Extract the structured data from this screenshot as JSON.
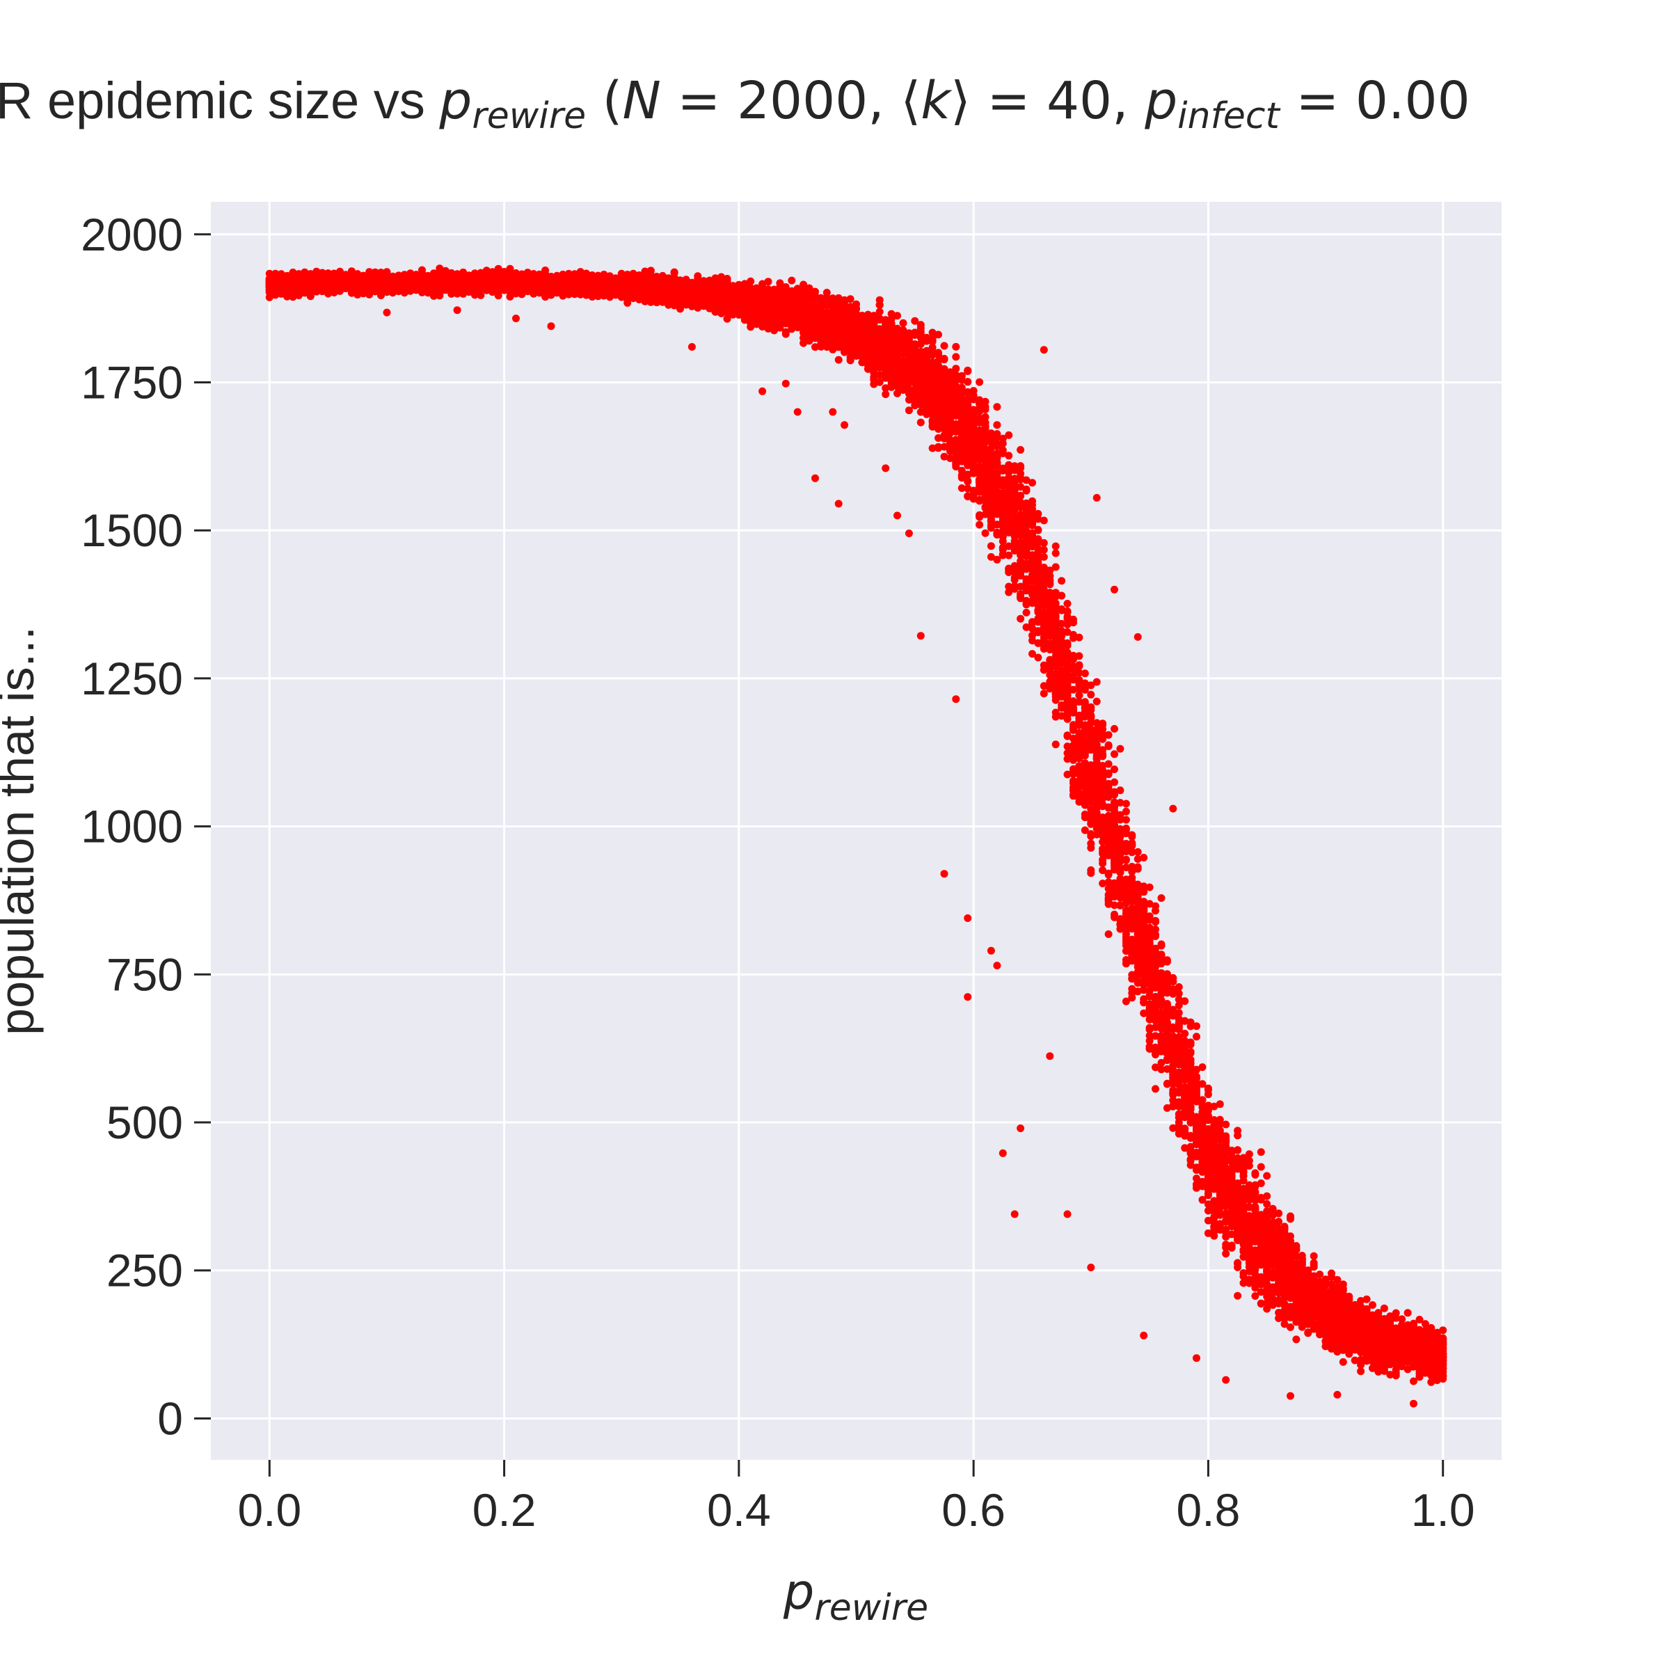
{
  "chart_data": {
    "type": "scatter",
    "title": {
      "prefix": "R epidemic size vs ",
      "p": "p",
      "sub_rewire": "rewire",
      "paren_open": " (",
      "N": "N",
      "eq1": " = 2000, ",
      "langle": "⟨",
      "k": "k",
      "rangle": "⟩",
      "eq2": " = 40, ",
      "p2": "p",
      "sub_infect": "infect",
      "eq3": " = 0.00"
    },
    "xlabel": {
      "p": "p",
      "sub": "rewire"
    },
    "ylabel": "population that is...",
    "xlim": [
      -0.05,
      1.05
    ],
    "ylim": [
      -70,
      2055
    ],
    "xticks": [
      "0.0",
      "0.2",
      "0.4",
      "0.6",
      "0.8",
      "1.0"
    ],
    "xtick_values": [
      0,
      0.2,
      0.4,
      0.6,
      0.8,
      1.0
    ],
    "yticks": [
      "0",
      "250",
      "500",
      "750",
      "1000",
      "1250",
      "1500",
      "1750",
      "2000"
    ],
    "ytick_values": [
      0,
      250,
      500,
      750,
      1000,
      1250,
      1500,
      1750,
      2000
    ],
    "grid": true,
    "marker_color": "#ff0000",
    "background_color": "#eaeaf2",
    "x_step": 0.005,
    "series": [
      {
        "band_center": [
          [
            0.0,
            1915
          ],
          [
            0.1,
            1918
          ],
          [
            0.2,
            1918
          ],
          [
            0.3,
            1912
          ],
          [
            0.35,
            1905
          ],
          [
            0.4,
            1890
          ],
          [
            0.45,
            1870
          ],
          [
            0.5,
            1835
          ],
          [
            0.55,
            1780
          ],
          [
            0.6,
            1650
          ],
          [
            0.65,
            1450
          ],
          [
            0.7,
            1100
          ],
          [
            0.75,
            760
          ],
          [
            0.8,
            440
          ],
          [
            0.85,
            280
          ],
          [
            0.9,
            180
          ],
          [
            0.95,
            130
          ],
          [
            1.0,
            105
          ]
        ],
        "band_halfwidth": [
          [
            0.0,
            28
          ],
          [
            0.3,
            30
          ],
          [
            0.4,
            50
          ],
          [
            0.5,
            80
          ],
          [
            0.55,
            120
          ],
          [
            0.6,
            170
          ],
          [
            0.65,
            220
          ],
          [
            0.7,
            250
          ],
          [
            0.75,
            240
          ],
          [
            0.8,
            200
          ],
          [
            0.85,
            150
          ],
          [
            0.9,
            100
          ],
          [
            0.95,
            80
          ],
          [
            1.0,
            65
          ]
        ],
        "outliers": [
          [
            0.1,
            1868
          ],
          [
            0.16,
            1872
          ],
          [
            0.21,
            1858
          ],
          [
            0.24,
            1845
          ],
          [
            0.36,
            1810
          ],
          [
            0.42,
            1735
          ],
          [
            0.44,
            1748
          ],
          [
            0.45,
            1700
          ],
          [
            0.465,
            1588
          ],
          [
            0.48,
            1700
          ],
          [
            0.485,
            1545
          ],
          [
            0.49,
            1678
          ],
          [
            0.525,
            1605
          ],
          [
            0.535,
            1525
          ],
          [
            0.545,
            1495
          ],
          [
            0.555,
            1322
          ],
          [
            0.575,
            920
          ],
          [
            0.585,
            1215
          ],
          [
            0.595,
            845
          ],
          [
            0.595,
            712
          ],
          [
            0.615,
            790
          ],
          [
            0.62,
            765
          ],
          [
            0.625,
            448
          ],
          [
            0.635,
            345
          ],
          [
            0.64,
            490
          ],
          [
            0.66,
            1805
          ],
          [
            0.665,
            612
          ],
          [
            0.68,
            345
          ],
          [
            0.705,
            1555
          ],
          [
            0.7,
            255
          ],
          [
            0.72,
            1400
          ],
          [
            0.74,
            1320
          ],
          [
            0.745,
            140
          ],
          [
            0.77,
            1030
          ],
          [
            0.79,
            102
          ],
          [
            0.815,
            65
          ],
          [
            0.845,
            450
          ],
          [
            0.87,
            38
          ],
          [
            0.91,
            40
          ],
          [
            0.975,
            25
          ]
        ]
      }
    ]
  }
}
